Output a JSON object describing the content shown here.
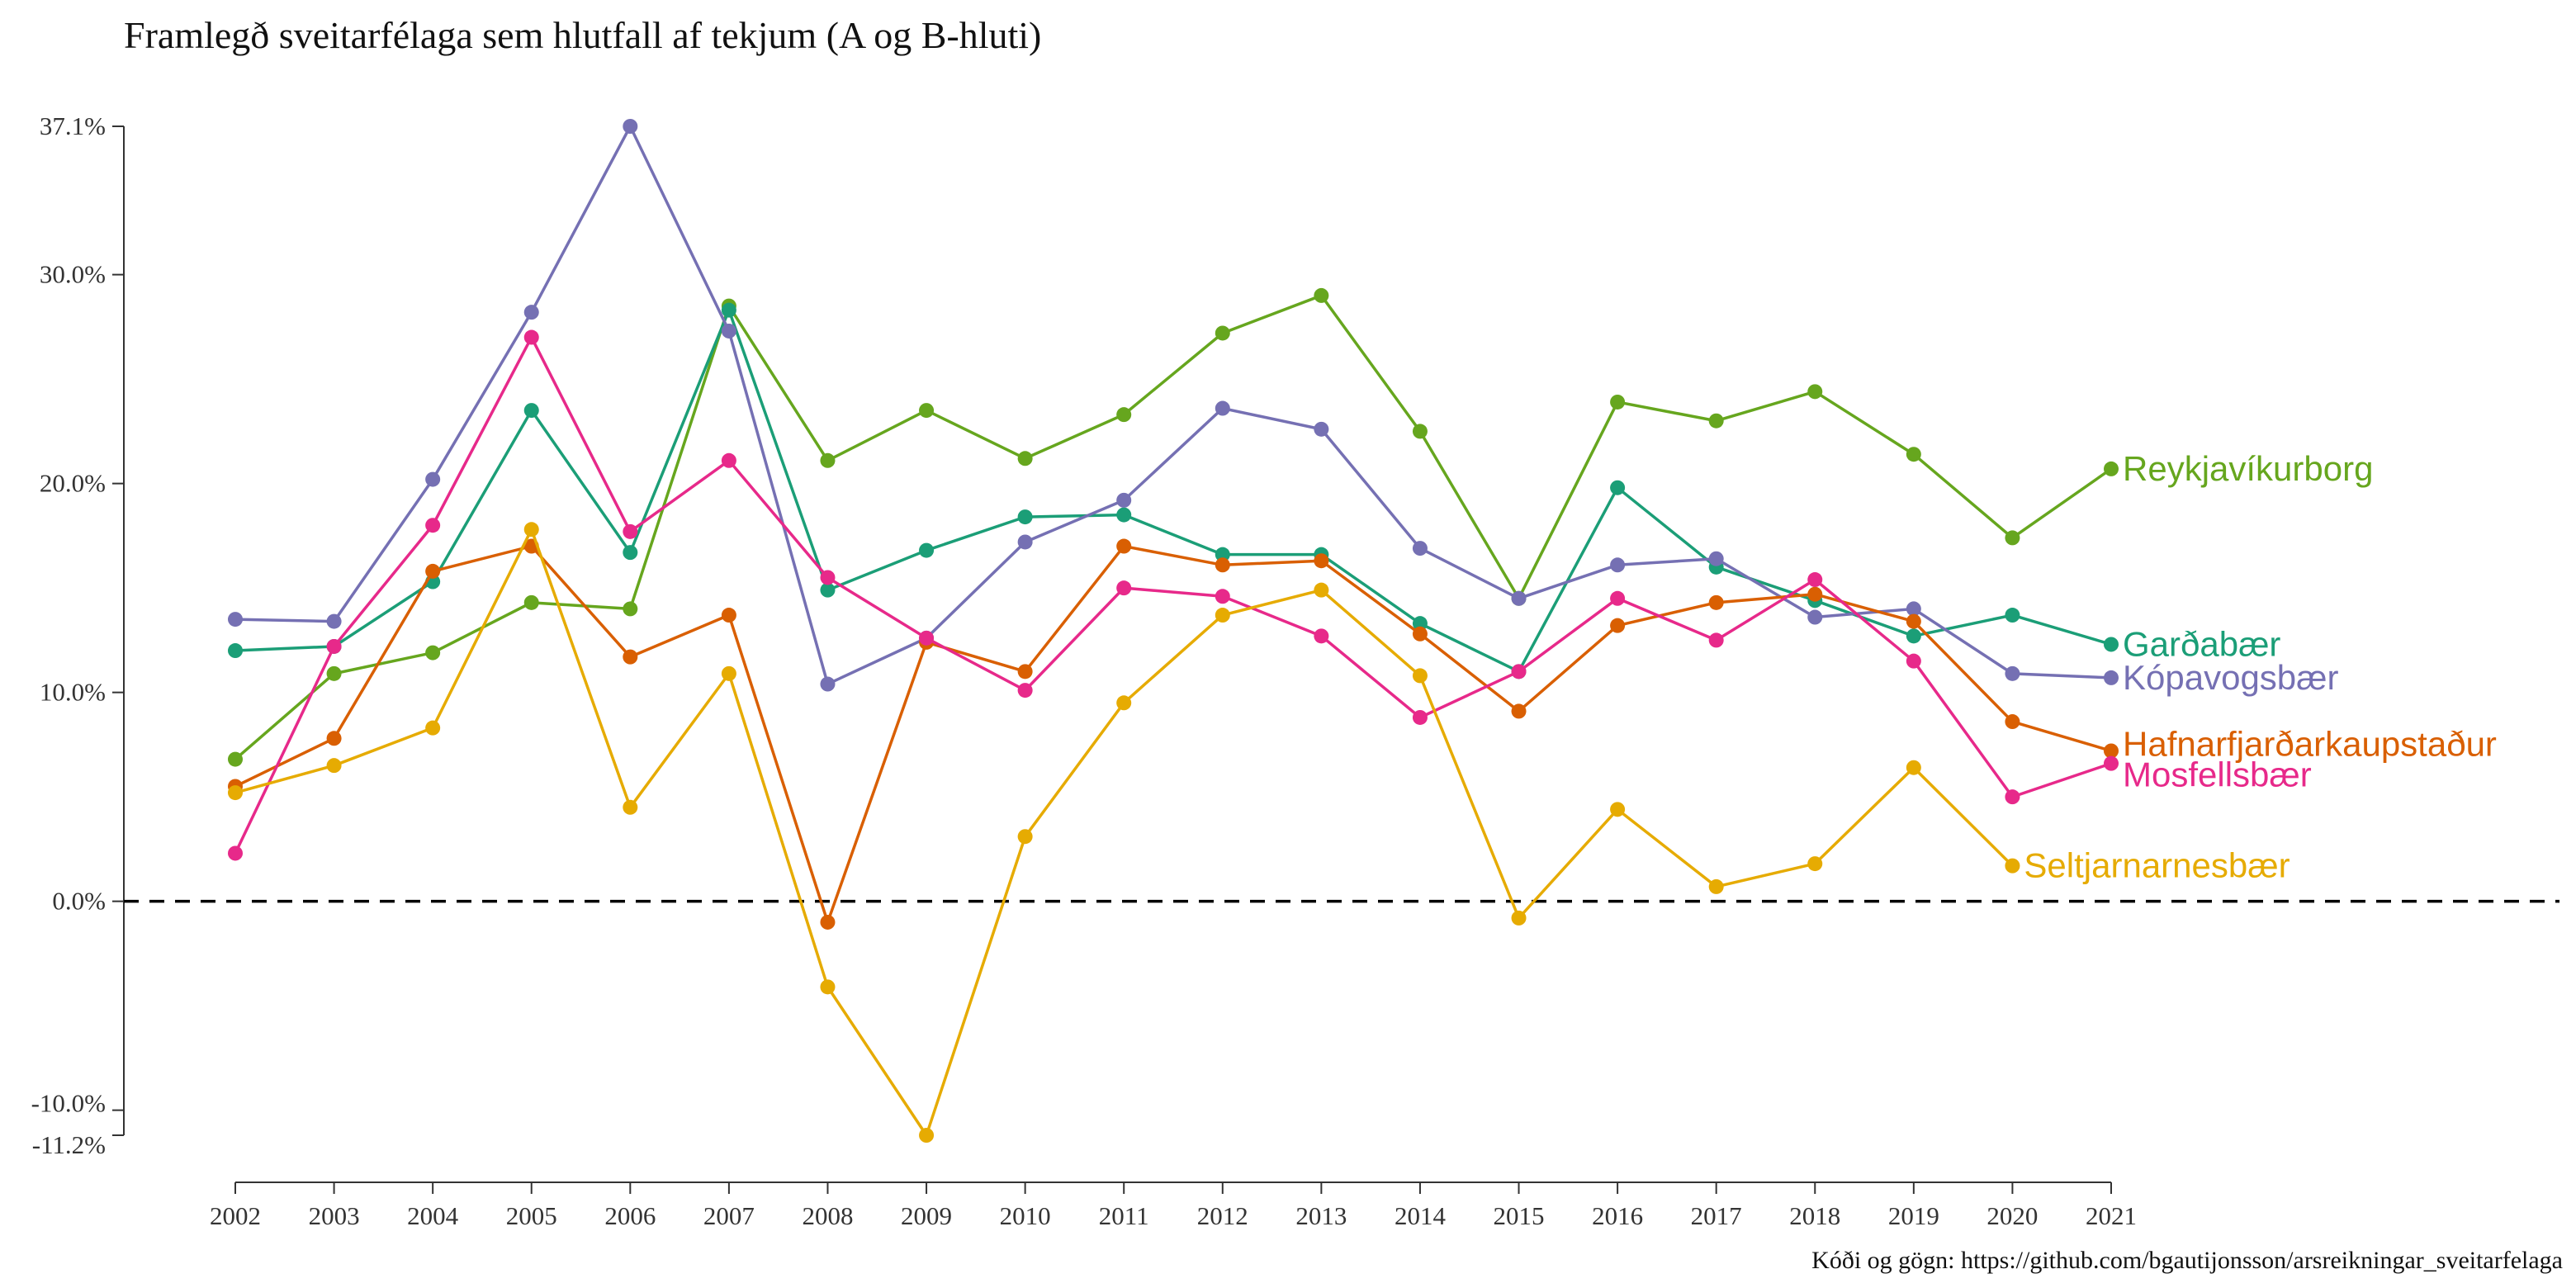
{
  "chart_data": {
    "type": "line",
    "title": "Framlegð sveitarfélaga sem hlutfall af tekjum (A og B-hluti)",
    "caption": "Kóði og gögn: https://github.com/bgautijonsson/arsreikningar_sveitarfelaga",
    "xlabel": "",
    "ylabel": "",
    "x": [
      "2002",
      "2003",
      "2004",
      "2005",
      "2006",
      "2007",
      "2008",
      "2009",
      "2010",
      "2011",
      "2012",
      "2013",
      "2014",
      "2015",
      "2016",
      "2017",
      "2018",
      "2019",
      "2020",
      "2021"
    ],
    "ylim": [
      -11.2,
      37.1
    ],
    "y_ticks": [
      -11.2,
      -10.0,
      0.0,
      10.0,
      20.0,
      30.0,
      37.1
    ],
    "y_tick_labels": [
      "-11.2%",
      "-10.0%",
      "0.0%",
      "10.0%",
      "20.0%",
      "30.0%",
      "37.1%"
    ],
    "reference_line": {
      "y": 0,
      "style": "dashed"
    },
    "grid": false,
    "legend": "end-of-line labels",
    "series": [
      {
        "name": "Reykjavíkurborg",
        "color": "#66a61e",
        "values": [
          6.8,
          10.9,
          11.9,
          14.3,
          14.0,
          28.5,
          21.1,
          23.5,
          21.2,
          23.3,
          27.2,
          29.0,
          22.5,
          14.5,
          23.9,
          23.0,
          24.4,
          21.4,
          17.4,
          20.7
        ]
      },
      {
        "name": "Garðabær",
        "color": "#1b9e77",
        "values": [
          12.0,
          12.2,
          15.3,
          23.5,
          16.7,
          28.3,
          14.9,
          16.8,
          18.4,
          18.5,
          16.6,
          16.6,
          13.3,
          11.0,
          19.8,
          16.0,
          14.4,
          12.7,
          13.7,
          12.3
        ]
      },
      {
        "name": "Kópavogsbær",
        "color": "#7570b3",
        "values": [
          13.5,
          13.4,
          20.2,
          28.2,
          37.1,
          27.3,
          10.4,
          12.6,
          17.2,
          19.2,
          23.6,
          22.6,
          16.9,
          14.5,
          16.1,
          16.4,
          13.6,
          14.0,
          10.9,
          10.7
        ]
      },
      {
        "name": "Hafnarfjarðarkaupstaður",
        "color": "#d95f02",
        "values": [
          5.5,
          7.8,
          15.8,
          17.0,
          11.7,
          13.7,
          -1.0,
          12.4,
          11.0,
          17.0,
          16.1,
          16.3,
          12.8,
          9.1,
          13.2,
          14.3,
          14.7,
          13.4,
          8.6,
          7.2
        ]
      },
      {
        "name": "Mosfellsbær",
        "color": "#e7298a",
        "values": [
          2.3,
          12.2,
          18.0,
          27.0,
          17.7,
          21.1,
          15.5,
          12.6,
          10.1,
          15.0,
          14.6,
          12.7,
          8.8,
          11.0,
          14.5,
          12.5,
          15.4,
          11.5,
          5.0,
          6.6
        ]
      },
      {
        "name": "Seltjarnarnesbær",
        "color": "#e6ab02",
        "values": [
          5.2,
          6.5,
          8.3,
          17.8,
          4.5,
          10.9,
          -4.1,
          -11.2,
          3.1,
          9.5,
          13.7,
          14.9,
          10.8,
          -0.8,
          4.4,
          0.7,
          1.8,
          6.4,
          1.7,
          null
        ]
      }
    ]
  }
}
